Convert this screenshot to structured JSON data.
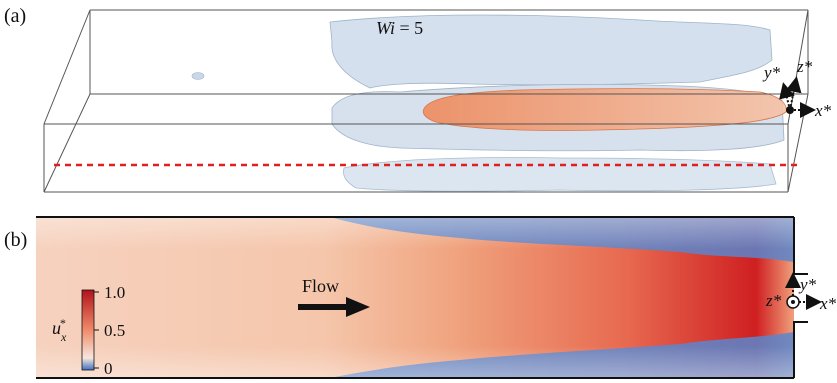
{
  "panel_a": {
    "label": "(a)",
    "title_var": "Wi",
    "title_eq": " = 5",
    "axes": {
      "y": "y*",
      "z": "z*",
      "x": "x*"
    }
  },
  "panel_b": {
    "label": "(b)",
    "flow_label": "Flow",
    "colorbar": {
      "var": "u",
      "sub": "x",
      "sup": "*",
      "ticks": [
        "1.0",
        "0.5",
        "0"
      ]
    },
    "axes": {
      "y": "y*",
      "z": "z*",
      "x": "x*"
    }
  },
  "colors": {
    "outline": "#222222",
    "dashed_line": "#e02020",
    "iso_surface": "#c9d8e8",
    "core_surface": "#ee8a5c",
    "high": "#c8151d",
    "low": "#3f6fc0"
  }
}
